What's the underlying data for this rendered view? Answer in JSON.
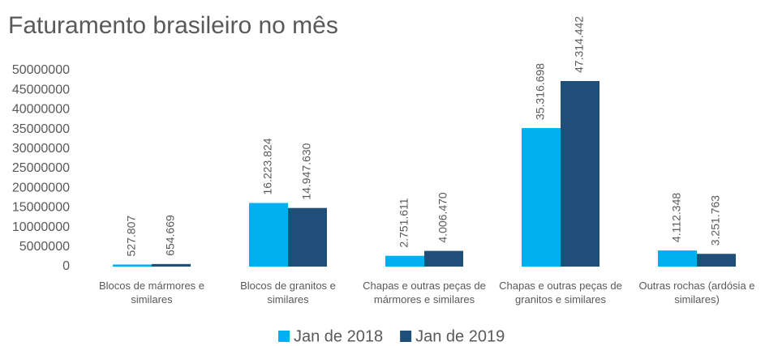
{
  "chart_data": {
    "type": "bar",
    "title": "Faturamento brasileiro no mês",
    "categories": [
      "Blocos de mármores e similares",
      "Blocos de granitos e similares",
      "Chapas e outras peças de mármores e similares",
      "Chapas e outras peças de granitos e similares",
      "Outras rochas (ardósia e similares)"
    ],
    "series": [
      {
        "name": "Jan de 2018",
        "color": "#00b0f0",
        "values": [
          527807,
          16223824,
          2751611,
          35316698,
          4112348
        ],
        "value_labels": [
          "527.807",
          "16.223.824",
          "2.751.611",
          "35.316.698",
          "4.112.348"
        ]
      },
      {
        "name": "Jan de 2019",
        "color": "#1f4e79",
        "values": [
          654669,
          14947630,
          4006470,
          47314442,
          3251763
        ],
        "value_labels": [
          "654.669",
          "14.947.630",
          "4.006.470",
          "47.314.442",
          "3.251.763"
        ]
      }
    ],
    "ylim": [
      0,
      50000000
    ],
    "yticks": [
      0,
      5000000,
      10000000,
      15000000,
      20000000,
      25000000,
      30000000,
      35000000,
      40000000,
      45000000,
      50000000
    ],
    "grid": false,
    "legend": "bottom"
  }
}
